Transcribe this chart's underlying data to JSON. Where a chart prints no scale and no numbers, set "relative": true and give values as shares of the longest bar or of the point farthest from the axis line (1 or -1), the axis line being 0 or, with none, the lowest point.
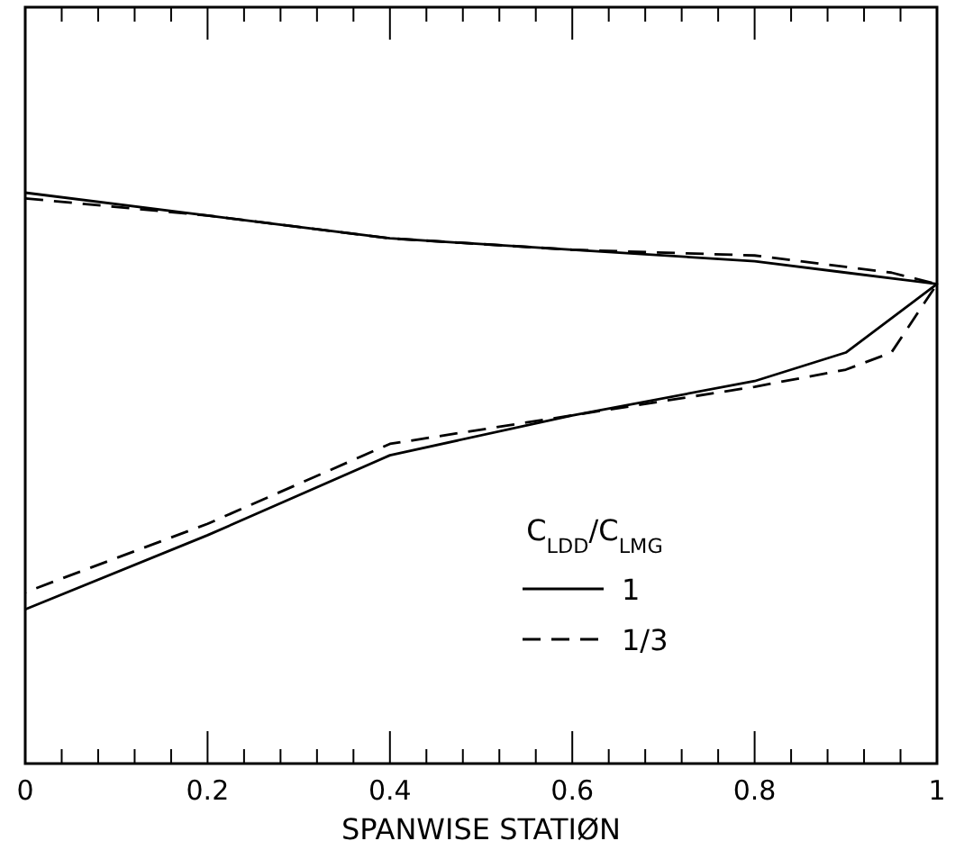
{
  "chart_data": {
    "type": "line",
    "xlabel": "SPANWISE STATIØN",
    "legend_title": "C$_{LDD}$/C$_{LMG}$",
    "relative": true,
    "xlim": [
      0,
      1
    ],
    "xticks": [
      0,
      {
        "value": 0.2,
        "label": "0.2"
      },
      {
        "value": 0.4,
        "label": "0.4"
      },
      {
        "value": 0.6,
        "label": "0.6"
      },
      {
        "value": 0.8,
        "label": "0.8"
      },
      1
    ],
    "legend": "bottom right",
    "tick_labels": "x",
    "series": [
      {
        "name": "1",
        "color": "#000000",
        "line_style": "solid",
        "x": [
          0,
          0.2,
          0.4,
          0.6,
          0.8,
          0.9,
          1,
          0.9,
          0.8,
          0.6,
          0.4,
          0.2,
          0
        ],
        "values": [
          1.0,
          0.96,
          0.92,
          0.9,
          0.88,
          0.86,
          0.84,
          0.72,
          0.67,
          0.61,
          0.54,
          0.4,
          0.27
        ]
      },
      {
        "name": "1/3",
        "color": "#000000",
        "line_style": "dashed",
        "x": [
          0,
          0.2,
          0.4,
          0.6,
          0.8,
          0.9,
          0.95,
          1,
          0.95,
          0.9,
          0.8,
          0.6,
          0.4,
          0.2,
          0
        ],
        "values": [
          0.99,
          0.96,
          0.92,
          0.9,
          0.89,
          0.87,
          0.86,
          0.84,
          0.72,
          0.69,
          0.66,
          0.61,
          0.56,
          0.42,
          0.3
        ]
      }
    ]
  }
}
